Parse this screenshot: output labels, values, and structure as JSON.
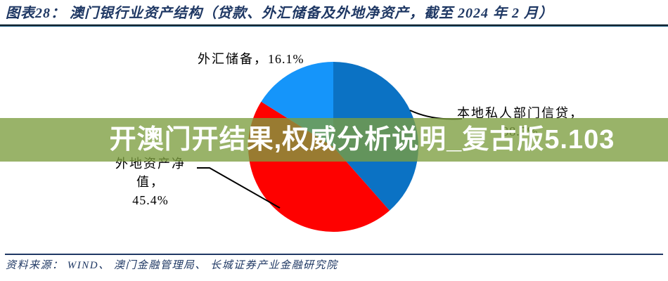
{
  "header": {
    "title": "图表28：  澳门银行业资产结构（贷款、外汇储备及外地净资产，截至 2024 年 2 月）"
  },
  "watermark": {
    "text": "开澳门开结果,权威分析说明_复古版5.103",
    "bg_color": "#7c9e3f",
    "bg_opacity": 0.78,
    "text_color": "#ffffff"
  },
  "footer": {
    "source": "资料来源：  WIND、 澳门金融管理局、 长城证券产业金融研究院"
  },
  "colors": {
    "navy": "#1f3864",
    "label_black": "#000000"
  },
  "chart_data": {
    "type": "pie",
    "title": "澳门银行业资产结构（贷款、外汇储备及外地净资产，截至 2024 年 2 月）",
    "unit": "%",
    "direction": "clockwise",
    "start_angle_deg": 0,
    "legend_position": "none",
    "slices": [
      {
        "name": "本地私人部门信贷",
        "value": 38.5,
        "color": "#0b72c4"
      },
      {
        "name": "外地资产净值",
        "value": 45.4,
        "color": "#fe0100"
      },
      {
        "name": "外汇储备",
        "value": 16.1,
        "color": "#1595fa"
      }
    ],
    "labels": {
      "fx": {
        "line1": "外汇储备，",
        "value": "16.1%"
      },
      "local": {
        "line1": "本地私人部门信贷，",
        "value": "38.5%"
      },
      "foreign": {
        "line1": "外地资产净值，",
        "value": "45.4%"
      }
    }
  }
}
